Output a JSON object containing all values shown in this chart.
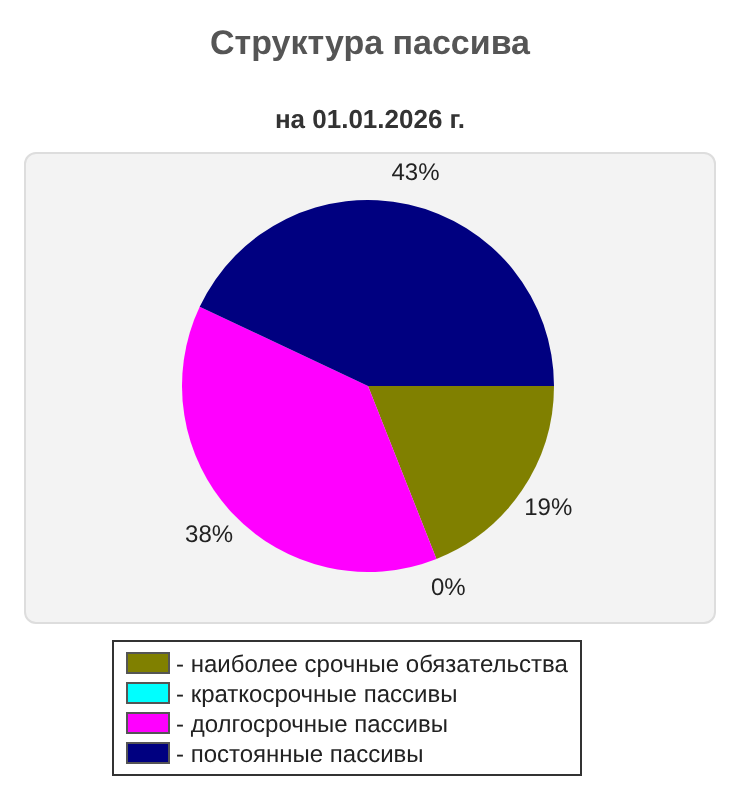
{
  "chart_data": {
    "type": "pie",
    "title": "Структура пассива",
    "subtitle": "на 01.01.2026 г.",
    "categories": [
      "- наиболее срочные обязательства",
      "- краткосрочные пассивы",
      "- долгосрочные пассивы",
      "- постоянные пассивы"
    ],
    "values": [
      19,
      0,
      38,
      43
    ],
    "value_labels": [
      "19%",
      "0%",
      "38%",
      "43%"
    ],
    "colors": [
      "#808000",
      "#00ffff",
      "#ff00ff",
      "#000080"
    ],
    "legend": "bottom"
  }
}
